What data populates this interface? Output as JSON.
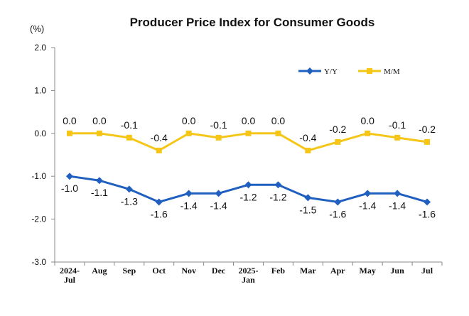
{
  "chart_data": {
    "type": "line",
    "title": "Producer Price Index for Consumer Goods",
    "unit_label": "(%)",
    "categories": [
      [
        "2024-",
        "Jul"
      ],
      [
        "Aug"
      ],
      [
        "Sep"
      ],
      [
        "Oct"
      ],
      [
        "Nov"
      ],
      [
        "Dec"
      ],
      [
        "2025-",
        "Jan"
      ],
      [
        "Feb"
      ],
      [
        "Mar"
      ],
      [
        "Apr"
      ],
      [
        "May"
      ],
      [
        "Jun"
      ],
      [
        "Jul"
      ]
    ],
    "ylim": [
      -3.0,
      2.0
    ],
    "yticks": [
      "2.0",
      "1.0",
      "0.0",
      "-1.0",
      "-2.0",
      "-3.0"
    ],
    "ytick_values": [
      2.0,
      1.0,
      0.0,
      -1.0,
      -2.0,
      -3.0
    ],
    "grid": false,
    "legend_position": "top-right",
    "series": [
      {
        "name": "Y/Y",
        "color": "#1f5fbf",
        "marker": "diamond",
        "values": [
          -1.0,
          -1.1,
          -1.3,
          -1.6,
          -1.4,
          -1.4,
          -1.2,
          -1.2,
          -1.5,
          -1.6,
          -1.4,
          -1.4,
          -1.6
        ],
        "labels": [
          "-1.0",
          "-1.1",
          "-1.3",
          "-1.6",
          "-1.4",
          "-1.4",
          "-1.2",
          "-1.2",
          "-1.5",
          "-1.6",
          "-1.4",
          "-1.4",
          "-1.6"
        ]
      },
      {
        "name": "M/M",
        "color": "#f5c518",
        "marker": "square",
        "values": [
          0.0,
          0.0,
          -0.1,
          -0.4,
          0.0,
          -0.1,
          0.0,
          0.0,
          -0.4,
          -0.2,
          0.0,
          -0.1,
          -0.2
        ],
        "labels": [
          "0.0",
          "0.0",
          "-0.1",
          "-0.4",
          "0.0",
          "-0.1",
          "0.0",
          "0.0",
          "-0.4",
          "-0.2",
          "0.0",
          "-0.1",
          "-0.2"
        ]
      }
    ]
  }
}
